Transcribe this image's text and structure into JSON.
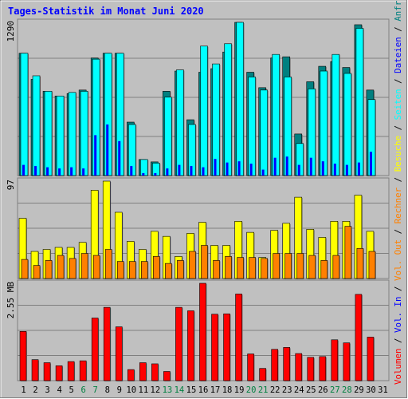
{
  "title": "Tages-Statistik im Monat Juni 2020",
  "colors": {
    "background": "#c0c0c0",
    "frame_dark": "#7f7f7f",
    "frame_light": "#ffffff",
    "title": "#0000ff",
    "anfragen": "#008080",
    "dateien": "#0000ff",
    "seiten": "#00ffff",
    "besuche": "#ffff00",
    "rechner": "#ff8000",
    "volume": "#ff0000",
    "vol_in": "#0000ff",
    "vol_out": "#ff8000",
    "weekend_day": "#008040",
    "weekday_day": "#000000"
  },
  "days": [
    "1",
    "2",
    "3",
    "4",
    "5",
    "6",
    "7",
    "8",
    "9",
    "10",
    "11",
    "12",
    "13",
    "14",
    "15",
    "16",
    "17",
    "18",
    "19",
    "20",
    "21",
    "22",
    "23",
    "24",
    "25",
    "26",
    "27",
    "28",
    "29",
    "30",
    "31"
  ],
  "weekend_days": [
    6,
    7,
    13,
    14,
    20,
    21,
    27,
    28
  ],
  "chart_data": [
    {
      "type": "bar",
      "panel": "hits",
      "max_label": "1290",
      "ylim": [
        0,
        1290
      ],
      "legend_right": [
        "Anfragen",
        "Dateien",
        "Seiten"
      ],
      "series": [
        {
          "name": "Anfragen",
          "values": [
            1030,
            810,
            710,
            670,
            690,
            720,
            990,
            1030,
            1030,
            450,
            135,
            115,
            710,
            880,
            470,
            870,
            900,
            1040,
            1290,
            870,
            740,
            990,
            1000,
            350,
            790,
            920,
            960,
            910,
            1270,
            720,
            0
          ]
        },
        {
          "name": "Dateien",
          "values": [
            1030,
            840,
            710,
            670,
            700,
            710,
            980,
            1030,
            1030,
            430,
            135,
            105,
            660,
            890,
            430,
            1090,
            940,
            1110,
            1290,
            830,
            720,
            1020,
            830,
            270,
            730,
            880,
            1020,
            860,
            1240,
            640,
            0
          ]
        },
        {
          "name": "Seiten",
          "values": [
            90,
            80,
            70,
            60,
            70,
            60,
            340,
            430,
            290,
            80,
            20,
            20,
            60,
            90,
            80,
            70,
            140,
            110,
            120,
            100,
            50,
            150,
            160,
            90,
            150,
            120,
            100,
            90,
            110,
            200,
            0
          ]
        }
      ]
    },
    {
      "type": "bar",
      "panel": "visits",
      "max_label": "97",
      "ylim": [
        0,
        97
      ],
      "legend_right": [
        "Besuche",
        "Rechner"
      ],
      "series": [
        {
          "name": "Besuche",
          "values": [
            60,
            27,
            29,
            31,
            31,
            36,
            88,
            97,
            66,
            37,
            29,
            47,
            42,
            22,
            45,
            56,
            33,
            33,
            57,
            46,
            21,
            48,
            55,
            81,
            49,
            41,
            57,
            57,
            83,
            47,
            0
          ]
        },
        {
          "name": "Rechner",
          "values": [
            19,
            13,
            18,
            23,
            20,
            25,
            23,
            29,
            17,
            17,
            17,
            22,
            15,
            18,
            27,
            33,
            18,
            22,
            21,
            21,
            20,
            25,
            25,
            25,
            23,
            18,
            23,
            52,
            30,
            27,
            0
          ]
        }
      ]
    },
    {
      "type": "bar",
      "panel": "volume",
      "max_label": "2.55 MB",
      "ylim": [
        0,
        2.55
      ],
      "legend_right": [
        "Volumen",
        "Vol. In",
        "Vol. Out"
      ],
      "series": [
        {
          "name": "Volumen",
          "values": [
            1.29,
            0.55,
            0.47,
            0.39,
            0.5,
            0.52,
            1.64,
            1.92,
            1.41,
            0.29,
            0.47,
            0.44,
            0.24,
            1.92,
            1.83,
            2.55,
            1.74,
            1.75,
            2.27,
            0.7,
            0.32,
            0.82,
            0.87,
            0.71,
            0.61,
            0.63,
            1.07,
            0.99,
            2.26,
            1.14,
            0
          ]
        }
      ]
    }
  ]
}
